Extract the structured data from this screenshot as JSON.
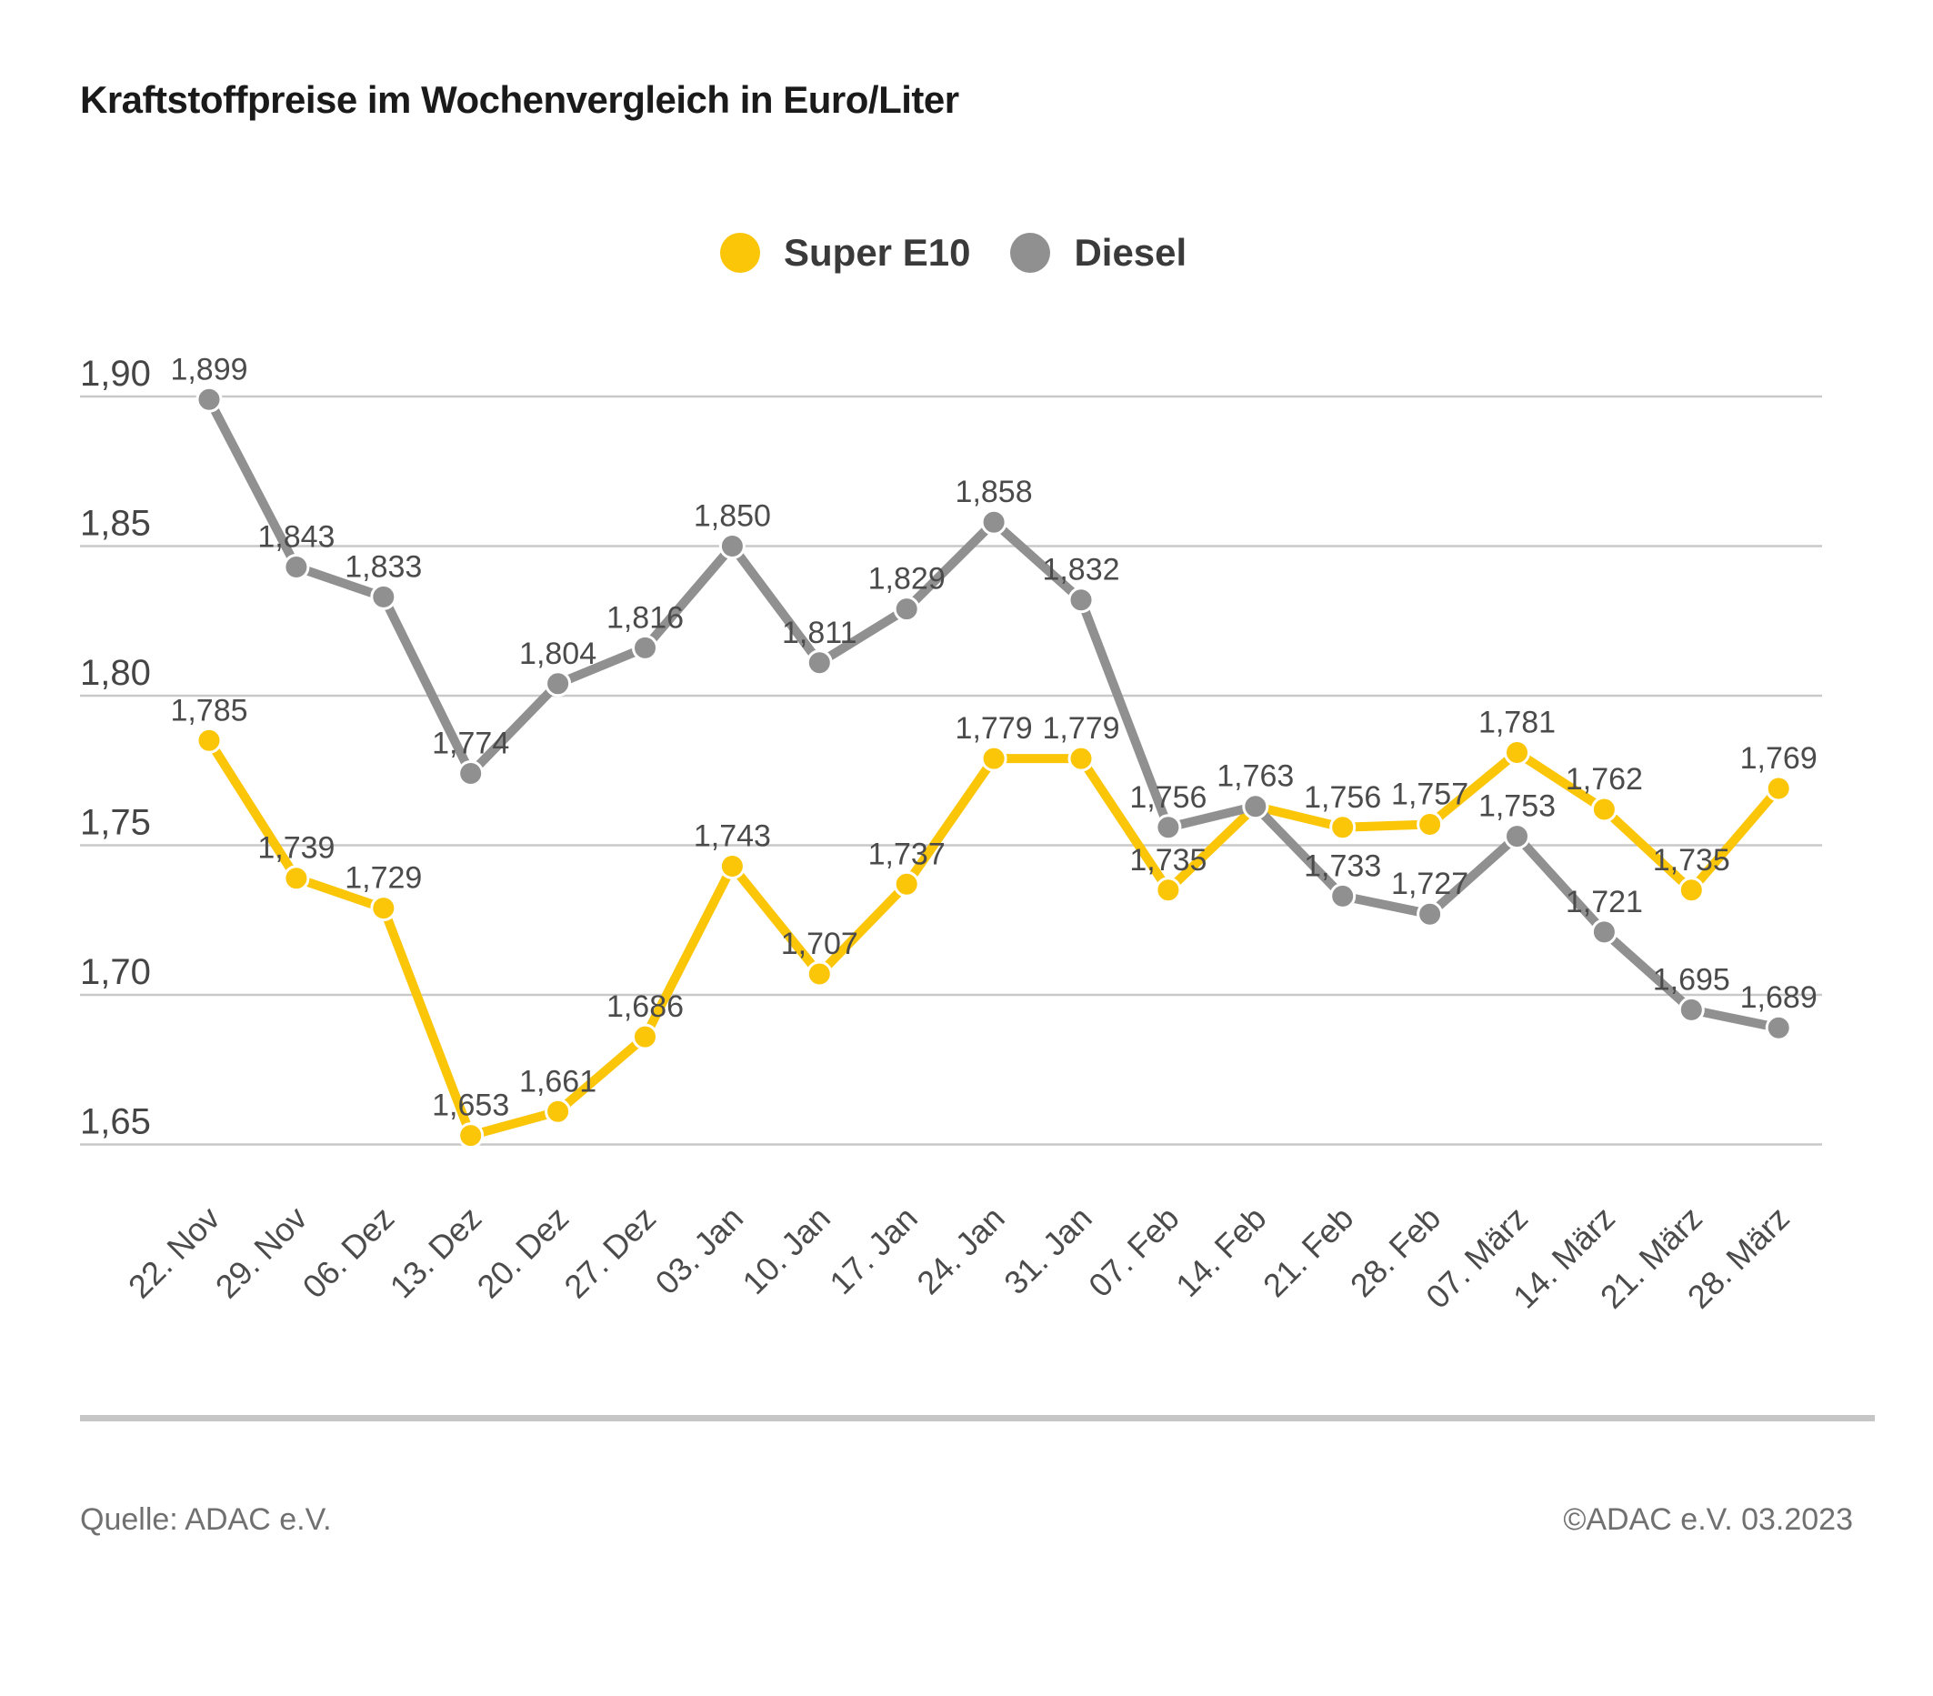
{
  "title": "Kraftstoffpreise im Wochenvergleich in Euro/Liter",
  "legend": [
    {
      "label": "Super E10",
      "color": "#fbc508"
    },
    {
      "label": "Diesel",
      "color": "#909090"
    }
  ],
  "footer": {
    "source": "Quelle: ADAC e.V.",
    "copyright": "©ADAC e.V. 03.2023"
  },
  "chart_data": {
    "type": "line",
    "title": "Kraftstoffpreise im Wochenvergleich in Euro/Liter",
    "unit": "Euro/Liter",
    "categories": [
      "22. Nov",
      "29. Nov",
      "06. Dez",
      "13. Dez",
      "20. Dez",
      "27. Dez",
      "03. Jan",
      "10. Jan",
      "17. Jan",
      "24. Jan",
      "31. Jan",
      "07. Feb",
      "14. Feb",
      "21. Feb",
      "28. Feb",
      "07. März",
      "14. März",
      "21. März",
      "28. März"
    ],
    "series": [
      {
        "name": "Super E10",
        "color": "#fbc508",
        "values": [
          1.785,
          1.739,
          1.729,
          1.653,
          1.661,
          1.686,
          1.743,
          1.707,
          1.737,
          1.779,
          1.779,
          1.735,
          1.763,
          1.756,
          1.757,
          1.781,
          1.762,
          1.735,
          1.769
        ]
      },
      {
        "name": "Diesel",
        "color": "#909090",
        "values": [
          1.899,
          1.843,
          1.833,
          1.774,
          1.804,
          1.816,
          1.85,
          1.811,
          1.829,
          1.858,
          1.832,
          1.756,
          1.763,
          1.733,
          1.727,
          1.753,
          1.721,
          1.695,
          1.689
        ]
      }
    ],
    "yticks": [
      1.9,
      1.85,
      1.8,
      1.75,
      1.7,
      1.65
    ],
    "ylim": [
      1.64,
      1.92
    ],
    "grid": true,
    "value_labels": true,
    "decimal_separator": ",",
    "legend_position": "top-center",
    "gridline_color": "#c9c9c9",
    "label_color": "#4b4b4b"
  }
}
